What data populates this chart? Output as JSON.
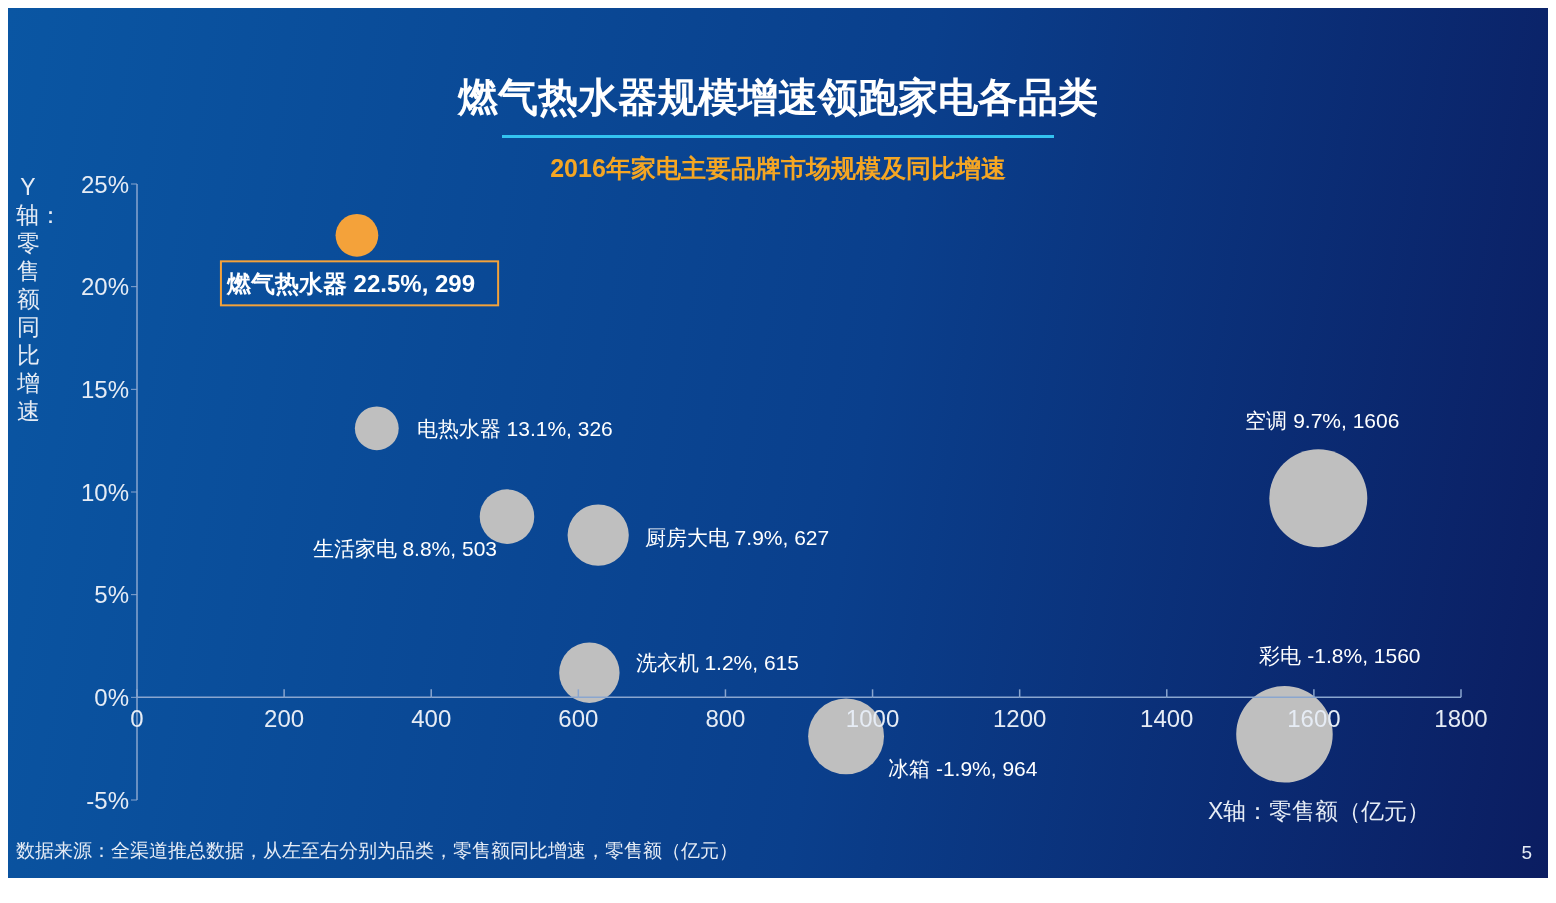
{
  "chart_data": {
    "type": "bubble",
    "title": "燃气热水器规模增速领跑家电各品类",
    "subtitle": "2016年家电主要品牌市场规模及同比增速",
    "xlabel": "X轴：零售额（亿元）",
    "ylabel": "Y轴：零售额同比增速",
    "x": [
      299,
      326,
      503,
      627,
      1606,
      615,
      964,
      1560
    ],
    "values": [
      22.5,
      13.1,
      8.8,
      7.9,
      9.7,
      1.2,
      -1.9,
      -1.8
    ],
    "sizes": [
      0.19,
      0.2,
      0.31,
      0.39,
      1,
      0.38,
      0.6,
      0.97
    ],
    "colors": [
      "#f4a23a",
      "#bfbfbf",
      "#bfbfbf",
      "#bfbfbf",
      "#bfbfbf",
      "#bfbfbf",
      "#bfbfbf",
      "#bfbfbf"
    ],
    "value_labels": [
      "燃气热水器 22.5%, 299",
      "电热水器 13.1%, 326",
      "生活家电 8.8%, 503",
      "厨房大电 7.9%, 627",
      "空调  9.7%, 1606",
      "洗衣机  1.2%, 615",
      "冰箱 -1.9%, 964",
      "彩电  -1.8%, 1560"
    ],
    "xlim": [
      0,
      1800
    ],
    "xticks": [
      0,
      200,
      400,
      600,
      800,
      1000,
      1200,
      1400,
      1600,
      1800
    ],
    "ylim": [
      -5,
      25
    ],
    "yticks": [
      {
        "value": -5,
        "label": "-5%"
      },
      {
        "value": 0,
        "label": "0%"
      },
      {
        "value": 5,
        "label": "5%"
      },
      {
        "value": 10,
        "label": "10%"
      },
      {
        "value": 15,
        "label": "15%"
      },
      {
        "value": 20,
        "label": "20%"
      },
      {
        "value": 25,
        "label": "25%"
      }
    ],
    "annotations": [
      "数据来源：全渠道推总数据，从左至右分别为品类，零售额同比增速，零售额（亿元）",
      "5"
    ],
    "grid": false,
    "legend": false
  }
}
